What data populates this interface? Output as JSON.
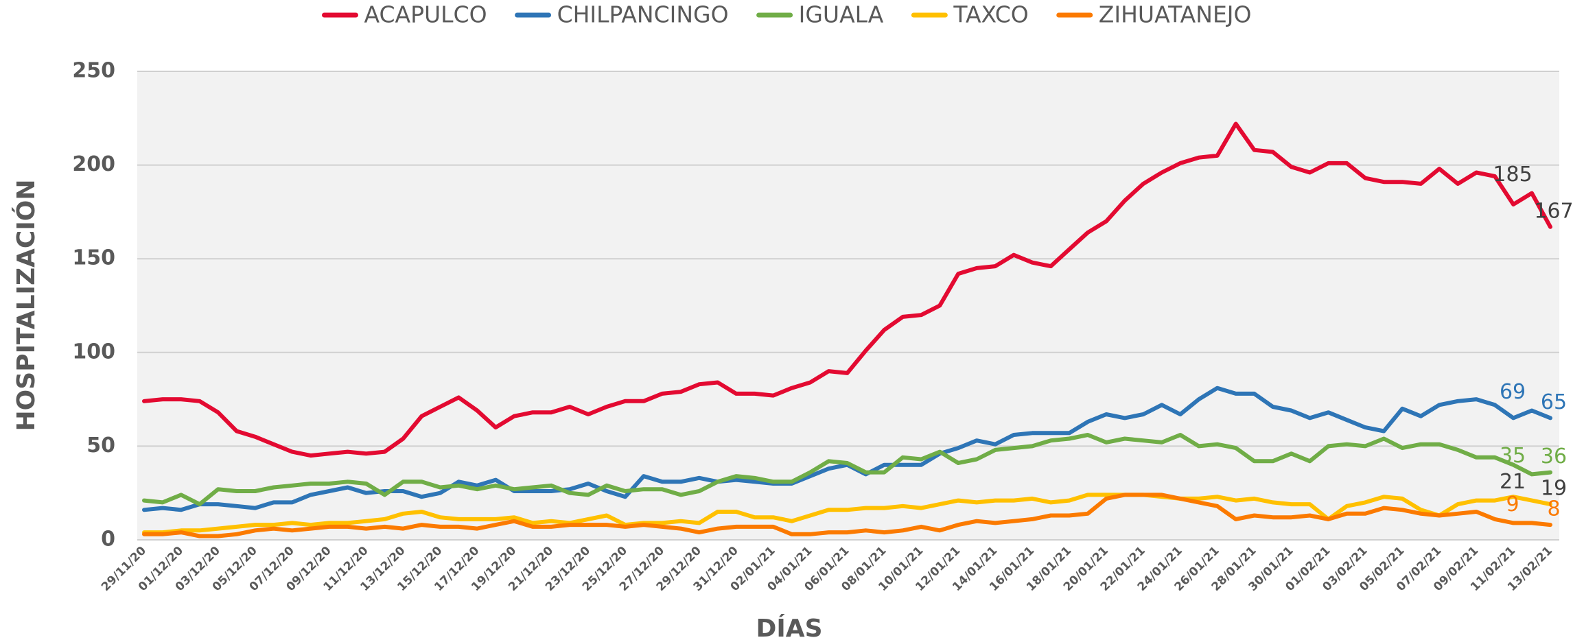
{
  "chart_data": {
    "type": "line",
    "y_label": "HOSPITALIZACIÓN",
    "x_label": "DÍAS",
    "categories": [
      "29/11/20",
      null,
      "01/12/20",
      null,
      "03/12/20",
      null,
      "05/12/20",
      null,
      "07/12/20",
      null,
      "09/12/20",
      null,
      "11/12/20",
      null,
      "13/12/20",
      null,
      "15/12/20",
      null,
      "17/12/20",
      null,
      "19/12/20",
      null,
      "21/12/20",
      null,
      "23/12/20",
      null,
      "25/12/20",
      null,
      "27/12/20",
      null,
      "29/12/20",
      null,
      "31/12/20",
      null,
      "02/01/21",
      null,
      "04/01/21",
      null,
      "06/01/21",
      null,
      "08/01/21",
      null,
      "10/01/21",
      null,
      "12/01/21",
      null,
      "14/01/21",
      null,
      "16/01/21",
      null,
      "18/01/21",
      null,
      "20/01/21",
      null,
      "22/01/21",
      null,
      "24/01/21",
      null,
      "26/01/21",
      null,
      "28/01/21",
      null,
      "30/01/21",
      null,
      "01/02/21",
      null,
      "03/02/21",
      null,
      "05/02/21",
      null,
      "07/02/21",
      null,
      "09/02/21",
      null,
      "11/02/21",
      null,
      "13/02/21"
    ],
    "series": [
      {
        "name": "ACAPULCO",
        "color": "#e30a31",
        "label_color": "#404040",
        "values": [
          74,
          75,
          75,
          74,
          68,
          58,
          55,
          51,
          47,
          45,
          46,
          47,
          46,
          47,
          54,
          66,
          71,
          76,
          69,
          60,
          66,
          68,
          68,
          71,
          67,
          71,
          74,
          74,
          78,
          79,
          83,
          84,
          78,
          78,
          77,
          81,
          84,
          90,
          89,
          101,
          112,
          119,
          120,
          125,
          142,
          145,
          146,
          152,
          148,
          146,
          155,
          164,
          170,
          181,
          190,
          196,
          201,
          204,
          205,
          222,
          208,
          207,
          199,
          196,
          201,
          201,
          193,
          191,
          191,
          190,
          198,
          190,
          196,
          194,
          179,
          185,
          167
        ]
      },
      {
        "name": "CHILPANCINGO",
        "color": "#2e75b6",
        "label_color": "#2e75b6",
        "values": [
          16,
          17,
          16,
          19,
          19,
          18,
          17,
          20,
          20,
          24,
          26,
          28,
          25,
          26,
          26,
          23,
          25,
          31,
          29,
          32,
          26,
          26,
          26,
          27,
          30,
          26,
          23,
          34,
          31,
          31,
          33,
          31,
          32,
          31,
          30,
          30,
          34,
          38,
          40,
          35,
          40,
          40,
          40,
          46,
          49,
          53,
          51,
          56,
          57,
          57,
          57,
          63,
          67,
          65,
          67,
          72,
          67,
          75,
          81,
          78,
          78,
          71,
          69,
          65,
          68,
          64,
          60,
          58,
          70,
          66,
          72,
          74,
          75,
          72,
          65,
          69,
          65
        ]
      },
      {
        "name": "IGUALA",
        "color": "#70ad47",
        "label_color": "#70ad47",
        "values": [
          21,
          20,
          24,
          19,
          27,
          26,
          26,
          28,
          29,
          30,
          30,
          31,
          30,
          24,
          31,
          31,
          28,
          29,
          27,
          29,
          27,
          28,
          29,
          25,
          24,
          29,
          26,
          27,
          27,
          24,
          26,
          31,
          34,
          33,
          31,
          31,
          36,
          42,
          41,
          36,
          36,
          44,
          43,
          47,
          41,
          43,
          48,
          49,
          50,
          53,
          54,
          56,
          52,
          54,
          53,
          52,
          56,
          50,
          51,
          49,
          42,
          42,
          46,
          42,
          50,
          51,
          50,
          54,
          49,
          51,
          51,
          48,
          44,
          44,
          40,
          35,
          36
        ]
      },
      {
        "name": "TAXCO",
        "color": "#ffc000",
        "label_color": "#404040",
        "values": [
          4,
          4,
          5,
          5,
          6,
          7,
          8,
          8,
          9,
          8,
          9,
          9,
          10,
          11,
          14,
          15,
          12,
          11,
          11,
          11,
          12,
          9,
          10,
          9,
          11,
          13,
          8,
          9,
          9,
          10,
          9,
          15,
          15,
          12,
          12,
          10,
          13,
          16,
          16,
          17,
          17,
          18,
          17,
          19,
          21,
          20,
          21,
          21,
          22,
          20,
          21,
          24,
          24,
          24,
          24,
          23,
          22,
          22,
          23,
          21,
          22,
          20,
          19,
          19,
          11,
          18,
          20,
          23,
          22,
          16,
          13,
          19,
          21,
          21,
          23,
          21,
          19
        ]
      },
      {
        "name": "ZIHUATANEJO",
        "color": "#fb7a00",
        "label_color": "#fb7a00",
        "values": [
          3,
          3,
          4,
          2,
          2,
          3,
          5,
          6,
          5,
          6,
          7,
          7,
          6,
          7,
          6,
          8,
          7,
          7,
          6,
          8,
          10,
          7,
          7,
          8,
          8,
          8,
          7,
          8,
          7,
          6,
          4,
          6,
          7,
          7,
          7,
          3,
          3,
          4,
          4,
          5,
          4,
          5,
          7,
          5,
          8,
          10,
          9,
          10,
          11,
          13,
          13,
          14,
          22,
          24,
          24,
          24,
          22,
          20,
          18,
          11,
          13,
          12,
          12,
          13,
          11,
          14,
          14,
          17,
          16,
          14,
          13,
          14,
          15,
          11,
          9,
          9,
          8
        ]
      }
    ],
    "ylim": [
      0,
      250
    ],
    "yticks": [
      0,
      50,
      100,
      150,
      200,
      250
    ],
    "grid": true,
    "legend": "top"
  }
}
